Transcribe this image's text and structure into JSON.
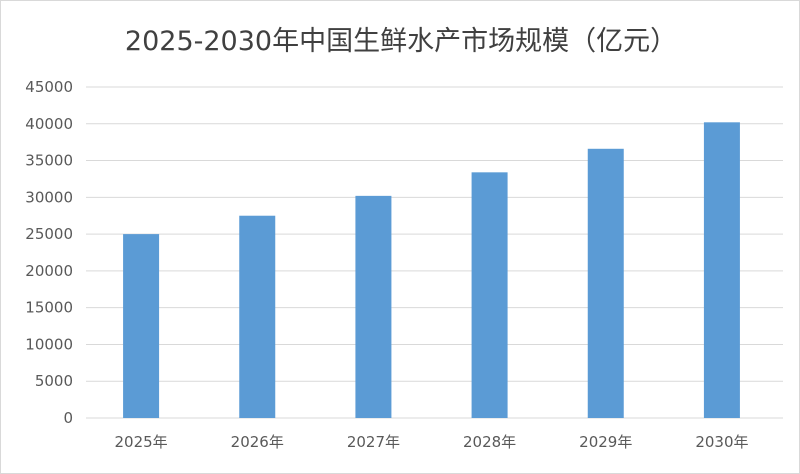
{
  "chart_data": {
    "type": "bar",
    "title": "2025-2030年中国生鲜水产市场规模（亿元）",
    "categories": [
      "2025年",
      "2026年",
      "2027年",
      "2028年",
      "2029年",
      "2030年"
    ],
    "values": [
      25000,
      27500,
      30200,
      33400,
      36600,
      40200
    ],
    "xlabel": "",
    "ylabel": "",
    "ylim": [
      0,
      45000
    ],
    "yticks": [
      "0",
      "5000",
      "10000",
      "15000",
      "20000",
      "25000",
      "30000",
      "35000",
      "40000",
      "45000"
    ],
    "grid": true,
    "legend": "none",
    "bar_color": "#5b9bd5"
  }
}
